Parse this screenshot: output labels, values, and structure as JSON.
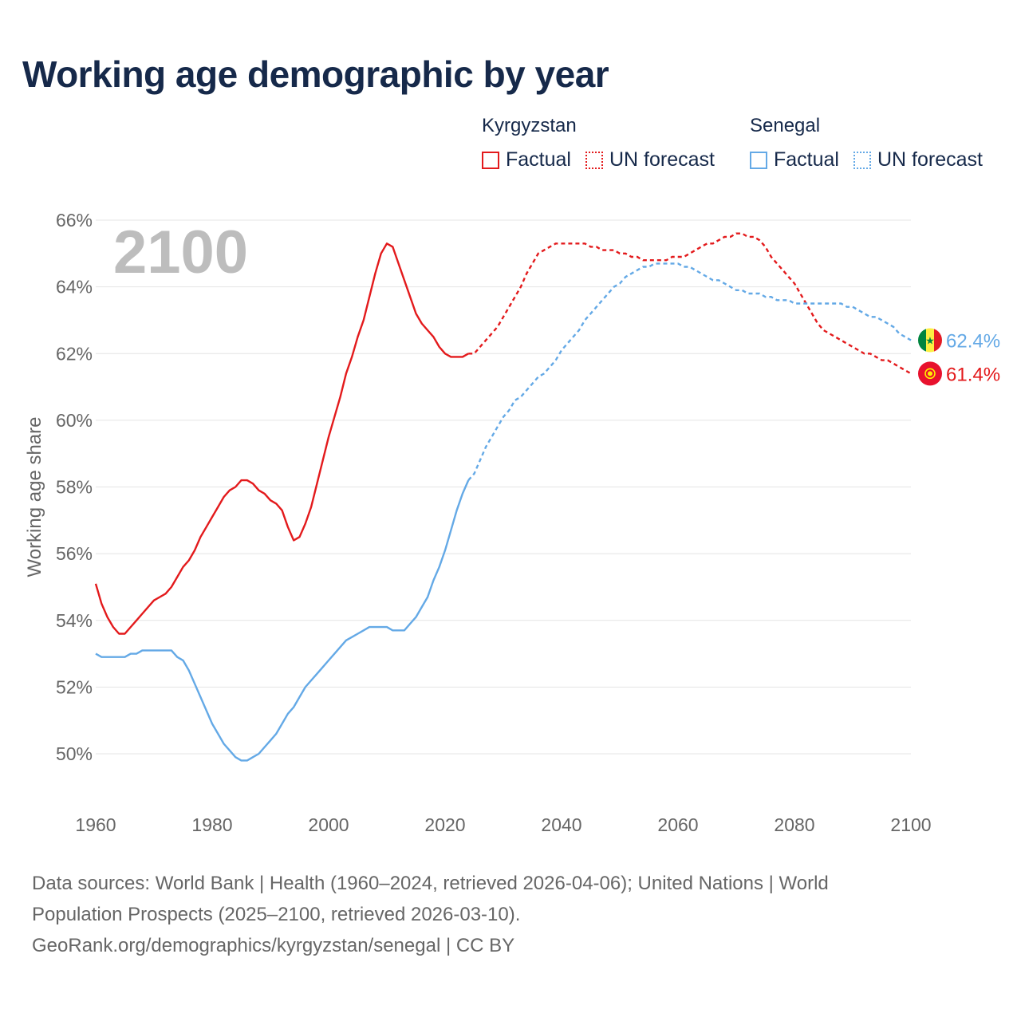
{
  "title": "Working age demographic by year",
  "legend": {
    "groups": [
      {
        "name": "Kyrgyzstan",
        "color": "#e31a1c",
        "factual_label": "Factual",
        "forecast_label": "UN forecast"
      },
      {
        "name": "Senegal",
        "color": "#64a9e6",
        "factual_label": "Factual",
        "forecast_label": "UN forecast"
      }
    ]
  },
  "source": {
    "line1": "Data sources: World Bank | Health (1960–2024, retrieved 2026-04-06); United Nations | World",
    "line2": "Population Prospects (2025–2100, retrieved 2026-03-10).",
    "line3": "GeoRank.org/demographics/kyrgyzstan/senegal | CC BY"
  },
  "chart_data": {
    "type": "line",
    "title": "Working age demographic by year",
    "xlabel": "",
    "ylabel": "Working age share",
    "year_watermark": "2100",
    "xlim": [
      1960,
      2100
    ],
    "ylim": [
      49,
      66
    ],
    "x_ticks": [
      1960,
      1980,
      2000,
      2020,
      2040,
      2060,
      2080,
      2100
    ],
    "y_ticks": [
      50,
      52,
      54,
      56,
      58,
      60,
      62,
      64,
      66
    ],
    "y_tick_labels": [
      "50%",
      "52%",
      "54%",
      "56%",
      "58%",
      "60%",
      "62%",
      "64%",
      "66%"
    ],
    "grid": true,
    "factual_end_year": 2024,
    "series": [
      {
        "name": "Kyrgyzstan",
        "color": "#e31a1c",
        "end_label": "61.4%",
        "flag_icon": "kyrgyzstan-flag-icon",
        "points": [
          [
            1960,
            55.1
          ],
          [
            1961,
            54.5
          ],
          [
            1962,
            54.1
          ],
          [
            1963,
            53.8
          ],
          [
            1964,
            53.6
          ],
          [
            1965,
            53.6
          ],
          [
            1966,
            53.8
          ],
          [
            1967,
            54.0
          ],
          [
            1968,
            54.2
          ],
          [
            1969,
            54.4
          ],
          [
            1970,
            54.6
          ],
          [
            1971,
            54.7
          ],
          [
            1972,
            54.8
          ],
          [
            1973,
            55.0
          ],
          [
            1974,
            55.3
          ],
          [
            1975,
            55.6
          ],
          [
            1976,
            55.8
          ],
          [
            1977,
            56.1
          ],
          [
            1978,
            56.5
          ],
          [
            1979,
            56.8
          ],
          [
            1980,
            57.1
          ],
          [
            1981,
            57.4
          ],
          [
            1982,
            57.7
          ],
          [
            1983,
            57.9
          ],
          [
            1984,
            58.0
          ],
          [
            1985,
            58.2
          ],
          [
            1986,
            58.2
          ],
          [
            1987,
            58.1
          ],
          [
            1988,
            57.9
          ],
          [
            1989,
            57.8
          ],
          [
            1990,
            57.6
          ],
          [
            1991,
            57.5
          ],
          [
            1992,
            57.3
          ],
          [
            1993,
            56.8
          ],
          [
            1994,
            56.4
          ],
          [
            1995,
            56.5
          ],
          [
            1996,
            56.9
          ],
          [
            1997,
            57.4
          ],
          [
            1998,
            58.1
          ],
          [
            1999,
            58.8
          ],
          [
            2000,
            59.5
          ],
          [
            2001,
            60.1
          ],
          [
            2002,
            60.7
          ],
          [
            2003,
            61.4
          ],
          [
            2004,
            61.9
          ],
          [
            2005,
            62.5
          ],
          [
            2006,
            63.0
          ],
          [
            2007,
            63.7
          ],
          [
            2008,
            64.4
          ],
          [
            2009,
            65.0
          ],
          [
            2010,
            65.3
          ],
          [
            2011,
            65.2
          ],
          [
            2012,
            64.7
          ],
          [
            2013,
            64.2
          ],
          [
            2014,
            63.7
          ],
          [
            2015,
            63.2
          ],
          [
            2016,
            62.9
          ],
          [
            2017,
            62.7
          ],
          [
            2018,
            62.5
          ],
          [
            2019,
            62.2
          ],
          [
            2020,
            62.0
          ],
          [
            2021,
            61.9
          ],
          [
            2022,
            61.9
          ],
          [
            2023,
            61.9
          ],
          [
            2024,
            62.0
          ],
          [
            2025,
            62.0
          ],
          [
            2026,
            62.2
          ],
          [
            2027,
            62.4
          ],
          [
            2028,
            62.6
          ],
          [
            2029,
            62.8
          ],
          [
            2030,
            63.1
          ],
          [
            2031,
            63.4
          ],
          [
            2032,
            63.7
          ],
          [
            2033,
            64.0
          ],
          [
            2034,
            64.4
          ],
          [
            2035,
            64.7
          ],
          [
            2036,
            65.0
          ],
          [
            2037,
            65.1
          ],
          [
            2038,
            65.2
          ],
          [
            2039,
            65.3
          ],
          [
            2040,
            65.3
          ],
          [
            2041,
            65.3
          ],
          [
            2042,
            65.3
          ],
          [
            2043,
            65.3
          ],
          [
            2044,
            65.3
          ],
          [
            2045,
            65.2
          ],
          [
            2046,
            65.2
          ],
          [
            2047,
            65.1
          ],
          [
            2048,
            65.1
          ],
          [
            2049,
            65.1
          ],
          [
            2050,
            65.0
          ],
          [
            2051,
            65.0
          ],
          [
            2052,
            64.9
          ],
          [
            2053,
            64.9
          ],
          [
            2054,
            64.8
          ],
          [
            2055,
            64.8
          ],
          [
            2056,
            64.8
          ],
          [
            2057,
            64.8
          ],
          [
            2058,
            64.8
          ],
          [
            2059,
            64.9
          ],
          [
            2060,
            64.9
          ],
          [
            2061,
            64.9
          ],
          [
            2062,
            65.0
          ],
          [
            2063,
            65.1
          ],
          [
            2064,
            65.2
          ],
          [
            2065,
            65.3
          ],
          [
            2066,
            65.3
          ],
          [
            2067,
            65.4
          ],
          [
            2068,
            65.5
          ],
          [
            2069,
            65.5
          ],
          [
            2070,
            65.6
          ],
          [
            2071,
            65.6
          ],
          [
            2072,
            65.5
          ],
          [
            2073,
            65.5
          ],
          [
            2074,
            65.4
          ],
          [
            2075,
            65.2
          ],
          [
            2076,
            64.9
          ],
          [
            2077,
            64.7
          ],
          [
            2078,
            64.5
          ],
          [
            2079,
            64.3
          ],
          [
            2080,
            64.1
          ],
          [
            2081,
            63.8
          ],
          [
            2082,
            63.5
          ],
          [
            2083,
            63.2
          ],
          [
            2084,
            62.9
          ],
          [
            2085,
            62.7
          ],
          [
            2086,
            62.6
          ],
          [
            2087,
            62.5
          ],
          [
            2088,
            62.4
          ],
          [
            2089,
            62.3
          ],
          [
            2090,
            62.2
          ],
          [
            2091,
            62.1
          ],
          [
            2092,
            62.0
          ],
          [
            2093,
            62.0
          ],
          [
            2094,
            61.9
          ],
          [
            2095,
            61.8
          ],
          [
            2096,
            61.8
          ],
          [
            2097,
            61.7
          ],
          [
            2098,
            61.6
          ],
          [
            2099,
            61.5
          ],
          [
            2100,
            61.4
          ]
        ]
      },
      {
        "name": "Senegal",
        "color": "#64a9e6",
        "end_label": "62.4%",
        "flag_icon": "senegal-flag-icon",
        "points": [
          [
            1960,
            53.0
          ],
          [
            1961,
            52.9
          ],
          [
            1962,
            52.9
          ],
          [
            1963,
            52.9
          ],
          [
            1964,
            52.9
          ],
          [
            1965,
            52.9
          ],
          [
            1966,
            53.0
          ],
          [
            1967,
            53.0
          ],
          [
            1968,
            53.1
          ],
          [
            1969,
            53.1
          ],
          [
            1970,
            53.1
          ],
          [
            1971,
            53.1
          ],
          [
            1972,
            53.1
          ],
          [
            1973,
            53.1
          ],
          [
            1974,
            52.9
          ],
          [
            1975,
            52.8
          ],
          [
            1976,
            52.5
          ],
          [
            1977,
            52.1
          ],
          [
            1978,
            51.7
          ],
          [
            1979,
            51.3
          ],
          [
            1980,
            50.9
          ],
          [
            1981,
            50.6
          ],
          [
            1982,
            50.3
          ],
          [
            1983,
            50.1
          ],
          [
            1984,
            49.9
          ],
          [
            1985,
            49.8
          ],
          [
            1986,
            49.8
          ],
          [
            1987,
            49.9
          ],
          [
            1988,
            50.0
          ],
          [
            1989,
            50.2
          ],
          [
            1990,
            50.4
          ],
          [
            1991,
            50.6
          ],
          [
            1992,
            50.9
          ],
          [
            1993,
            51.2
          ],
          [
            1994,
            51.4
          ],
          [
            1995,
            51.7
          ],
          [
            1996,
            52.0
          ],
          [
            1997,
            52.2
          ],
          [
            1998,
            52.4
          ],
          [
            1999,
            52.6
          ],
          [
            2000,
            52.8
          ],
          [
            2001,
            53.0
          ],
          [
            2002,
            53.2
          ],
          [
            2003,
            53.4
          ],
          [
            2004,
            53.5
          ],
          [
            2005,
            53.6
          ],
          [
            2006,
            53.7
          ],
          [
            2007,
            53.8
          ],
          [
            2008,
            53.8
          ],
          [
            2009,
            53.8
          ],
          [
            2010,
            53.8
          ],
          [
            2011,
            53.7
          ],
          [
            2012,
            53.7
          ],
          [
            2013,
            53.7
          ],
          [
            2014,
            53.9
          ],
          [
            2015,
            54.1
          ],
          [
            2016,
            54.4
          ],
          [
            2017,
            54.7
          ],
          [
            2018,
            55.2
          ],
          [
            2019,
            55.6
          ],
          [
            2020,
            56.1
          ],
          [
            2021,
            56.7
          ],
          [
            2022,
            57.3
          ],
          [
            2023,
            57.8
          ],
          [
            2024,
            58.2
          ],
          [
            2025,
            58.4
          ],
          [
            2026,
            58.8
          ],
          [
            2027,
            59.2
          ],
          [
            2028,
            59.5
          ],
          [
            2029,
            59.8
          ],
          [
            2030,
            60.1
          ],
          [
            2031,
            60.3
          ],
          [
            2032,
            60.6
          ],
          [
            2033,
            60.7
          ],
          [
            2034,
            60.9
          ],
          [
            2035,
            61.1
          ],
          [
            2036,
            61.3
          ],
          [
            2037,
            61.4
          ],
          [
            2038,
            61.6
          ],
          [
            2039,
            61.8
          ],
          [
            2040,
            62.1
          ],
          [
            2041,
            62.3
          ],
          [
            2042,
            62.5
          ],
          [
            2043,
            62.7
          ],
          [
            2044,
            63.0
          ],
          [
            2045,
            63.2
          ],
          [
            2046,
            63.4
          ],
          [
            2047,
            63.6
          ],
          [
            2048,
            63.8
          ],
          [
            2049,
            64.0
          ],
          [
            2050,
            64.1
          ],
          [
            2051,
            64.3
          ],
          [
            2052,
            64.4
          ],
          [
            2053,
            64.5
          ],
          [
            2054,
            64.6
          ],
          [
            2055,
            64.6
          ],
          [
            2056,
            64.7
          ],
          [
            2057,
            64.7
          ],
          [
            2058,
            64.7
          ],
          [
            2059,
            64.7
          ],
          [
            2060,
            64.7
          ],
          [
            2061,
            64.6
          ],
          [
            2062,
            64.6
          ],
          [
            2063,
            64.5
          ],
          [
            2064,
            64.4
          ],
          [
            2065,
            64.3
          ],
          [
            2066,
            64.2
          ],
          [
            2067,
            64.2
          ],
          [
            2068,
            64.1
          ],
          [
            2069,
            64.0
          ],
          [
            2070,
            63.9
          ],
          [
            2071,
            63.9
          ],
          [
            2072,
            63.8
          ],
          [
            2073,
            63.8
          ],
          [
            2074,
            63.8
          ],
          [
            2075,
            63.7
          ],
          [
            2076,
            63.7
          ],
          [
            2077,
            63.6
          ],
          [
            2078,
            63.6
          ],
          [
            2079,
            63.6
          ],
          [
            2080,
            63.5
          ],
          [
            2081,
            63.5
          ],
          [
            2082,
            63.5
          ],
          [
            2083,
            63.5
          ],
          [
            2084,
            63.5
          ],
          [
            2085,
            63.5
          ],
          [
            2086,
            63.5
          ],
          [
            2087,
            63.5
          ],
          [
            2088,
            63.5
          ],
          [
            2089,
            63.4
          ],
          [
            2090,
            63.4
          ],
          [
            2091,
            63.3
          ],
          [
            2092,
            63.2
          ],
          [
            2093,
            63.1
          ],
          [
            2094,
            63.1
          ],
          [
            2095,
            63.0
          ],
          [
            2096,
            62.9
          ],
          [
            2097,
            62.8
          ],
          [
            2098,
            62.6
          ],
          [
            2099,
            62.5
          ],
          [
            2100,
            62.4
          ]
        ]
      }
    ]
  }
}
